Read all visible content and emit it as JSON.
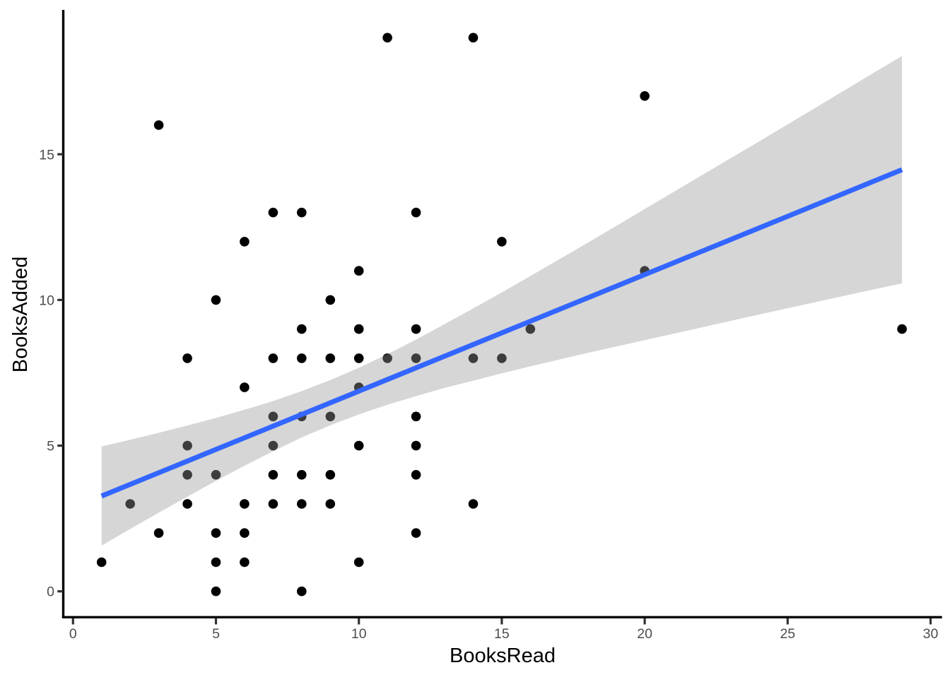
{
  "figure": {
    "background": "#ffffff"
  },
  "chart_data": {
    "type": "scatter",
    "title": "",
    "xlabel": "BooksRead",
    "ylabel": "BooksAdded",
    "x_ticks": [
      0,
      5,
      10,
      15,
      20,
      25,
      30
    ],
    "y_ticks": [
      0,
      5,
      10,
      15
    ],
    "xlim": [
      -0.4,
      30.4
    ],
    "ylim": [
      -0.95,
      19.95
    ],
    "grid": "off",
    "legend": "none",
    "point_color": "#000000",
    "point_radius": 6.8,
    "axis_style": {
      "line_color": "#000000",
      "tick_color": "#333333",
      "tick_label_color": "#4d4d4d",
      "title_color": "#000000"
    },
    "points": [
      [
        1,
        1
      ],
      [
        2,
        3
      ],
      [
        3,
        2
      ],
      [
        3,
        16
      ],
      [
        4,
        3
      ],
      [
        4,
        4
      ],
      [
        4,
        5
      ],
      [
        4,
        8
      ],
      [
        5,
        0
      ],
      [
        5,
        1
      ],
      [
        5,
        2
      ],
      [
        5,
        4
      ],
      [
        5,
        10
      ],
      [
        6,
        1
      ],
      [
        6,
        2
      ],
      [
        6,
        3
      ],
      [
        6,
        7
      ],
      [
        6,
        12
      ],
      [
        7,
        3
      ],
      [
        7,
        4
      ],
      [
        7,
        5
      ],
      [
        7,
        6
      ],
      [
        7,
        8
      ],
      [
        7,
        13
      ],
      [
        8,
        0
      ],
      [
        8,
        3
      ],
      [
        8,
        4
      ],
      [
        8,
        6
      ],
      [
        8,
        8
      ],
      [
        8,
        9
      ],
      [
        8,
        13
      ],
      [
        9,
        3
      ],
      [
        9,
        4
      ],
      [
        9,
        6
      ],
      [
        9,
        8
      ],
      [
        9,
        10
      ],
      [
        10,
        1
      ],
      [
        10,
        5
      ],
      [
        10,
        7
      ],
      [
        10,
        8
      ],
      [
        10,
        9
      ],
      [
        10,
        11
      ],
      [
        11,
        8
      ],
      [
        11,
        19
      ],
      [
        12,
        2
      ],
      [
        12,
        4
      ],
      [
        12,
        5
      ],
      [
        12,
        6
      ],
      [
        12,
        8
      ],
      [
        12,
        9
      ],
      [
        12,
        13
      ],
      [
        14,
        3
      ],
      [
        14,
        8
      ],
      [
        14,
        19
      ],
      [
        15,
        8
      ],
      [
        15,
        12
      ],
      [
        16,
        9
      ],
      [
        20,
        11
      ],
      [
        20,
        17
      ],
      [
        29,
        9
      ]
    ],
    "smooth_line": {
      "method": "lm",
      "color": "#3366FF",
      "width": 7,
      "x1": 1,
      "y1": 3.27,
      "x2": 29,
      "y2": 14.47
    },
    "confidence_band": {
      "fill": "#999999",
      "opacity": 0.4,
      "samples": [
        {
          "x": 1,
          "lo": 1.57,
          "hi": 4.97
        },
        {
          "x": 2,
          "lo": 2.14,
          "hi": 5.2
        },
        {
          "x": 3,
          "lo": 2.7,
          "hi": 5.44
        },
        {
          "x": 4,
          "lo": 3.25,
          "hi": 5.69
        },
        {
          "x": 5,
          "lo": 3.79,
          "hi": 5.95
        },
        {
          "x": 6,
          "lo": 4.31,
          "hi": 6.23
        },
        {
          "x": 7,
          "lo": 4.81,
          "hi": 6.53
        },
        {
          "x": 8,
          "lo": 5.28,
          "hi": 6.87
        },
        {
          "x": 9,
          "lo": 5.7,
          "hi": 7.25
        },
        {
          "x": 10,
          "lo": 6.07,
          "hi": 7.67
        },
        {
          "x": 11,
          "lo": 6.4,
          "hi": 8.14
        },
        {
          "x": 12,
          "lo": 6.7,
          "hi": 8.64
        },
        {
          "x": 13,
          "lo": 6.98,
          "hi": 9.17
        },
        {
          "x": 14,
          "lo": 7.23,
          "hi": 9.71
        },
        {
          "x": 15,
          "lo": 7.48,
          "hi": 10.26
        },
        {
          "x": 16,
          "lo": 7.72,
          "hi": 10.82
        },
        {
          "x": 17,
          "lo": 7.95,
          "hi": 11.39
        },
        {
          "x": 18,
          "lo": 8.18,
          "hi": 11.96
        },
        {
          "x": 19,
          "lo": 8.4,
          "hi": 12.54
        },
        {
          "x": 20,
          "lo": 8.62,
          "hi": 13.12
        },
        {
          "x": 22,
          "lo": 9.06,
          "hi": 14.28
        },
        {
          "x": 24,
          "lo": 9.5,
          "hi": 15.44
        },
        {
          "x": 26,
          "lo": 9.93,
          "hi": 16.61
        },
        {
          "x": 28,
          "lo": 10.36,
          "hi": 17.79
        },
        {
          "x": 29,
          "lo": 10.57,
          "hi": 18.37
        }
      ]
    }
  }
}
